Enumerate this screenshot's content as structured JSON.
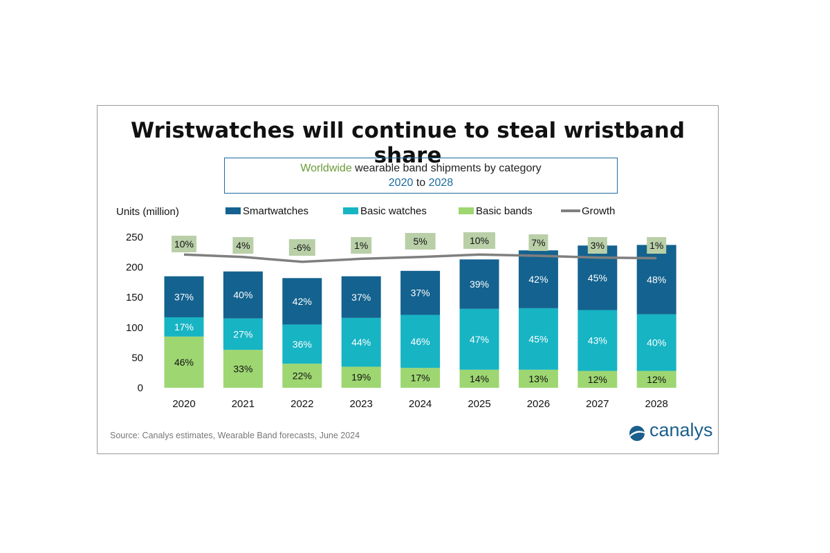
{
  "title": "Wristwatches will continue to steal wristband share",
  "subtitle": {
    "word_world": "Worldwide",
    "line1_rest": " wearable band shipments by category",
    "year_start": "2020",
    "word_to": " to ",
    "year_end": "2028"
  },
  "source": "Source:  Canalys estimates, Wearable Band forecasts, June 2024",
  "logo_text": "canalys",
  "colors": {
    "smartwatches": "#14628f",
    "basic_watches": "#17b4c4",
    "basic_bands": "#9ed672",
    "growth_line": "#7f7f7f",
    "growth_box": "#b9cfa8"
  },
  "chart_data": {
    "type": "bar",
    "stacked": true,
    "ylabel": "Units (million)",
    "ylim": [
      0,
      250
    ],
    "yticks": [
      0,
      50,
      100,
      150,
      200,
      250
    ],
    "categories": [
      "2020",
      "2021",
      "2022",
      "2023",
      "2024",
      "2025",
      "2026",
      "2027",
      "2028"
    ],
    "series": [
      {
        "name": "Basic bands",
        "key": "basic_bands",
        "values": [
          85,
          63,
          40,
          35,
          33,
          30,
          30,
          28,
          28
        ],
        "labels": [
          "46%",
          "33%",
          "22%",
          "19%",
          "17%",
          "14%",
          "13%",
          "12%",
          "12%"
        ]
      },
      {
        "name": "Basic watches",
        "key": "basic_watches",
        "values": [
          32,
          52,
          65,
          81,
          88,
          101,
          102,
          101,
          94
        ],
        "labels": [
          "17%",
          "27%",
          "36%",
          "44%",
          "46%",
          "47%",
          "45%",
          "43%",
          "40%"
        ]
      },
      {
        "name": "Smartwatches",
        "key": "smartwatches",
        "values": [
          68,
          78,
          77,
          69,
          73,
          82,
          96,
          107,
          115
        ],
        "labels": [
          "37%",
          "40%",
          "42%",
          "37%",
          "37%",
          "39%",
          "42%",
          "45%",
          "48%"
        ]
      }
    ],
    "growth": {
      "name": "Growth",
      "labels": [
        "10%",
        "4%",
        "-6%",
        "1%",
        "5%",
        "10%",
        "7%",
        "3%",
        "1%"
      ],
      "line_level": [
        221,
        217,
        209,
        214,
        217,
        221,
        219,
        216,
        215
      ]
    },
    "legend": [
      "Smartwatches",
      "Basic watches",
      "Basic bands",
      "Growth"
    ],
    "legend_position": "top",
    "grid": false
  }
}
